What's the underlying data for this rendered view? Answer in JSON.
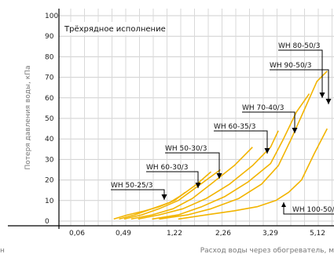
{
  "chart_data": {
    "type": "line",
    "title": "Трёхрядное исполнение",
    "ylabel": "Потеря давления воды, кПа",
    "xlabel": "Расход воды через обогреватель, м",
    "xlabel_left_fragment": "н",
    "y_ticks": [
      "0",
      "10",
      "20",
      "30",
      "40",
      "50",
      "60",
      "70",
      "80",
      "90",
      "100"
    ],
    "x_ticks": [
      "0,06",
      "0,49",
      "1,22",
      "2,26",
      "3,29",
      "5,12"
    ],
    "ylim": [
      0,
      100
    ],
    "x_scale": "nonlinear (labeled positions only)",
    "grid": true,
    "line_color": "#f2b400",
    "series": [
      {
        "name": "WH 50-25/3",
        "points": [
          [
            0.4,
            1
          ],
          [
            0.55,
            3
          ],
          [
            0.8,
            5
          ],
          [
            1.0,
            7
          ],
          [
            1.22,
            10
          ],
          [
            1.45,
            14
          ]
        ]
      },
      {
        "name": "WH 60-30/3",
        "points": [
          [
            0.45,
            1
          ],
          [
            0.65,
            3
          ],
          [
            0.9,
            6
          ],
          [
            1.15,
            9
          ],
          [
            1.4,
            13
          ],
          [
            1.7,
            18
          ],
          [
            2.0,
            24
          ]
        ]
      },
      {
        "name": "WH 50-30/3",
        "points": [
          [
            0.5,
            1
          ],
          [
            0.75,
            3
          ],
          [
            1.0,
            6
          ],
          [
            1.3,
            10
          ],
          [
            1.6,
            15
          ],
          [
            1.9,
            20
          ],
          [
            2.2,
            25
          ]
        ]
      },
      {
        "name": "WH 60-35/3",
        "points": [
          [
            0.6,
            1
          ],
          [
            0.9,
            3
          ],
          [
            1.2,
            6
          ],
          [
            1.6,
            11
          ],
          [
            2.0,
            18
          ],
          [
            2.5,
            27
          ],
          [
            2.9,
            36
          ]
        ]
      },
      {
        "name": "WH 70-40/3",
        "points": [
          [
            0.7,
            1
          ],
          [
            1.0,
            3
          ],
          [
            1.4,
            6
          ],
          [
            1.9,
            11
          ],
          [
            2.4,
            18
          ],
          [
            2.9,
            27
          ],
          [
            3.3,
            36
          ],
          [
            3.6,
            44
          ]
        ]
      },
      {
        "name": "WH 80-50/3",
        "points": [
          [
            0.9,
            1
          ],
          [
            1.3,
            3
          ],
          [
            1.8,
            7
          ],
          [
            2.3,
            12
          ],
          [
            2.8,
            19
          ],
          [
            3.3,
            28
          ],
          [
            3.8,
            40
          ],
          [
            4.3,
            53
          ],
          [
            4.8,
            62
          ]
        ]
      },
      {
        "name": "WH 90-50/3",
        "points": [
          [
            1.0,
            1
          ],
          [
            1.5,
            3
          ],
          [
            2.0,
            6
          ],
          [
            2.6,
            11
          ],
          [
            3.1,
            18
          ],
          [
            3.6,
            27
          ],
          [
            4.1,
            40
          ],
          [
            4.6,
            54
          ],
          [
            5.1,
            68
          ],
          [
            5.4,
            73
          ]
        ]
      },
      {
        "name": "WH 100-50/3",
        "points": [
          [
            1.3,
            1
          ],
          [
            1.9,
            3
          ],
          [
            2.5,
            5
          ],
          [
            3.0,
            7
          ],
          [
            3.5,
            10
          ],
          [
            4.0,
            14
          ],
          [
            4.5,
            20
          ],
          [
            5.0,
            33
          ],
          [
            5.4,
            45
          ]
        ]
      }
    ],
    "callouts": [
      {
        "label": "WH 50-25/3",
        "x": 1.05,
        "y": 10
      },
      {
        "label": "WH 60-30/3",
        "x": 1.35,
        "y": 16
      },
      {
        "label": "WH 50-30/3",
        "x": 1.75,
        "y": 19
      },
      {
        "label": "WH 60-35/3",
        "x": 2.8,
        "y": 33
      },
      {
        "label": "WH 70-40/3",
        "x": 3.55,
        "y": 41
      },
      {
        "label": "WH 80-50/3",
        "x": 4.75,
        "y": 60
      },
      {
        "label": "WH 90-50/3",
        "x": 5.05,
        "y": 55
      },
      {
        "label": "WH 100-50/3",
        "x": 4.9,
        "y": 10
      }
    ]
  }
}
